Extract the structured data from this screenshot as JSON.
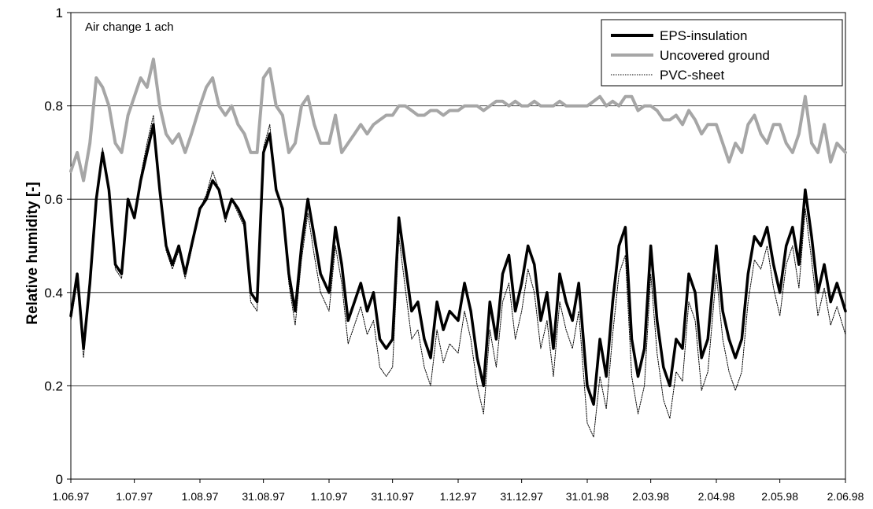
{
  "chart_data": {
    "type": "line",
    "title": "",
    "annotation": "Air change 1 ach",
    "xlabel": "",
    "ylabel": "Relative humidity  [-]",
    "ylim": [
      0,
      1
    ],
    "y_ticks": [
      "0",
      "0.2",
      "0.4",
      "0.6",
      "0.8",
      "1"
    ],
    "x_ticks": [
      "1.06.97",
      "1.07.97",
      "1.08.97",
      "31.08.97",
      "1.10.97",
      "31.10.97",
      "1.12.97",
      "31.12.97",
      "31.01.98",
      "2.03.98",
      "2.04.98",
      "2.05.98",
      "2.06.98"
    ],
    "grid": "horizontal",
    "legend_position": "top-right",
    "legend": [
      "EPS-insulation",
      "Uncovered ground",
      "PVC-sheet"
    ],
    "series": [
      {
        "name": "EPS-insulation",
        "color": "#000000",
        "style": "thick solid",
        "x": [
          "1.06.97",
          "4.06.97",
          "7.06.97",
          "10.06.97",
          "13.06.97",
          "16.06.97",
          "19.06.97",
          "22.06.97",
          "25.06.97",
          "28.06.97",
          "1.07.97",
          "4.07.97",
          "7.07.97",
          "10.07.97",
          "13.07.97",
          "16.07.97",
          "19.07.97",
          "22.07.97",
          "25.07.97",
          "28.07.97",
          "1.08.97",
          "4.08.97",
          "7.08.97",
          "10.08.97",
          "13.08.97",
          "16.08.97",
          "19.08.97",
          "22.08.97",
          "25.08.97",
          "28.08.97",
          "31.08.97",
          "3.09.97",
          "6.09.97",
          "9.09.97",
          "12.09.97",
          "15.09.97",
          "18.09.97",
          "21.09.97",
          "24.09.97",
          "27.09.97",
          "1.10.97",
          "4.10.97",
          "7.10.97",
          "10.10.97",
          "13.10.97",
          "16.10.97",
          "19.10.97",
          "22.10.97",
          "25.10.97",
          "28.10.97",
          "31.10.97",
          "3.11.97",
          "6.11.97",
          "9.11.97",
          "12.11.97",
          "15.11.97",
          "18.11.97",
          "21.11.97",
          "24.11.97",
          "27.11.97",
          "1.12.97",
          "4.12.97",
          "7.12.97",
          "10.12.97",
          "13.12.97",
          "16.12.97",
          "19.12.97",
          "22.12.97",
          "25.12.97",
          "28.12.97",
          "31.12.97",
          "3.01.98",
          "6.01.98",
          "9.01.98",
          "12.01.98",
          "15.01.98",
          "18.01.98",
          "21.01.98",
          "24.01.98",
          "27.01.98",
          "31.01.98",
          "3.02.98",
          "6.02.98",
          "9.02.98",
          "12.02.98",
          "15.02.98",
          "18.02.98",
          "21.02.98",
          "24.02.98",
          "27.02.98",
          "2.03.98",
          "5.03.98",
          "8.03.98",
          "11.03.98",
          "14.03.98",
          "17.03.98",
          "20.03.98",
          "23.03.98",
          "26.03.98",
          "29.03.98",
          "2.04.98",
          "5.04.98",
          "8.04.98",
          "11.04.98",
          "14.04.98",
          "17.04.98",
          "20.04.98",
          "23.04.98",
          "26.04.98",
          "29.04.98",
          "2.05.98",
          "5.05.98",
          "8.05.98",
          "11.05.98",
          "14.05.98",
          "17.05.98",
          "20.05.98",
          "23.05.98",
          "26.05.98",
          "29.05.98",
          "2.06.98"
        ],
        "values": [
          0.35,
          0.44,
          0.28,
          0.42,
          0.6,
          0.7,
          0.62,
          0.46,
          0.44,
          0.6,
          0.56,
          0.64,
          0.7,
          0.76,
          0.62,
          0.5,
          0.46,
          0.5,
          0.44,
          0.5,
          0.58,
          0.6,
          0.64,
          0.62,
          0.56,
          0.6,
          0.58,
          0.55,
          0.4,
          0.38,
          0.7,
          0.74,
          0.62,
          0.58,
          0.44,
          0.36,
          0.5,
          0.6,
          0.52,
          0.44,
          0.4,
          0.54,
          0.46,
          0.34,
          0.38,
          0.42,
          0.36,
          0.4,
          0.3,
          0.28,
          0.3,
          0.56,
          0.46,
          0.36,
          0.38,
          0.3,
          0.26,
          0.38,
          0.32,
          0.36,
          0.34,
          0.42,
          0.36,
          0.26,
          0.2,
          0.38,
          0.3,
          0.44,
          0.48,
          0.36,
          0.42,
          0.5,
          0.46,
          0.34,
          0.4,
          0.28,
          0.44,
          0.38,
          0.34,
          0.42,
          0.2,
          0.16,
          0.3,
          0.22,
          0.38,
          0.5,
          0.54,
          0.3,
          0.22,
          0.28,
          0.5,
          0.34,
          0.24,
          0.2,
          0.3,
          0.28,
          0.44,
          0.4,
          0.26,
          0.3,
          0.5,
          0.36,
          0.3,
          0.26,
          0.3,
          0.44,
          0.52,
          0.5,
          0.54,
          0.46,
          0.4,
          0.5,
          0.54,
          0.46,
          0.62,
          0.52,
          0.4,
          0.46,
          0.38,
          0.42,
          0.36
        ]
      },
      {
        "name": "Uncovered ground",
        "color": "#a6a6a6",
        "style": "thick solid",
        "x": [
          "1.06.97",
          "4.06.97",
          "7.06.97",
          "10.06.97",
          "13.06.97",
          "16.06.97",
          "19.06.97",
          "22.06.97",
          "25.06.97",
          "28.06.97",
          "1.07.97",
          "4.07.97",
          "7.07.97",
          "10.07.97",
          "13.07.97",
          "16.07.97",
          "19.07.97",
          "22.07.97",
          "25.07.97",
          "28.07.97",
          "1.08.97",
          "4.08.97",
          "7.08.97",
          "10.08.97",
          "13.08.97",
          "16.08.97",
          "19.08.97",
          "22.08.97",
          "25.08.97",
          "28.08.97",
          "31.08.97",
          "3.09.97",
          "6.09.97",
          "9.09.97",
          "12.09.97",
          "15.09.97",
          "18.09.97",
          "21.09.97",
          "24.09.97",
          "27.09.97",
          "1.10.97",
          "4.10.97",
          "7.10.97",
          "10.10.97",
          "13.10.97",
          "16.10.97",
          "19.10.97",
          "22.10.97",
          "25.10.97",
          "28.10.97",
          "31.10.97",
          "3.11.97",
          "6.11.97",
          "9.11.97",
          "12.11.97",
          "15.11.97",
          "18.11.97",
          "21.11.97",
          "24.11.97",
          "27.11.97",
          "1.12.97",
          "4.12.97",
          "7.12.97",
          "10.12.97",
          "13.12.97",
          "16.12.97",
          "19.12.97",
          "22.12.97",
          "25.12.97",
          "28.12.97",
          "31.12.97",
          "3.01.98",
          "6.01.98",
          "9.01.98",
          "12.01.98",
          "15.01.98",
          "18.01.98",
          "21.01.98",
          "24.01.98",
          "27.01.98",
          "31.01.98",
          "3.02.98",
          "6.02.98",
          "9.02.98",
          "12.02.98",
          "15.02.98",
          "18.02.98",
          "21.02.98",
          "24.02.98",
          "27.02.98",
          "2.03.98",
          "5.03.98",
          "8.03.98",
          "11.03.98",
          "14.03.98",
          "17.03.98",
          "20.03.98",
          "23.03.98",
          "26.03.98",
          "29.03.98",
          "2.04.98",
          "5.04.98",
          "8.04.98",
          "11.04.98",
          "14.04.98",
          "17.04.98",
          "20.04.98",
          "23.04.98",
          "26.04.98",
          "29.04.98",
          "2.05.98",
          "5.05.98",
          "8.05.98",
          "11.05.98",
          "14.05.98",
          "17.05.98",
          "20.05.98",
          "23.05.98",
          "26.05.98",
          "29.05.98",
          "2.06.98"
        ],
        "values": [
          0.66,
          0.7,
          0.64,
          0.72,
          0.86,
          0.84,
          0.8,
          0.72,
          0.7,
          0.78,
          0.82,
          0.86,
          0.84,
          0.9,
          0.8,
          0.74,
          0.72,
          0.74,
          0.7,
          0.74,
          0.8,
          0.84,
          0.86,
          0.8,
          0.78,
          0.8,
          0.76,
          0.74,
          0.7,
          0.7,
          0.86,
          0.88,
          0.8,
          0.78,
          0.7,
          0.72,
          0.8,
          0.82,
          0.76,
          0.72,
          0.72,
          0.78,
          0.7,
          0.72,
          0.74,
          0.76,
          0.74,
          0.76,
          0.77,
          0.78,
          0.78,
          0.8,
          0.8,
          0.79,
          0.78,
          0.78,
          0.79,
          0.79,
          0.78,
          0.79,
          0.79,
          0.8,
          0.8,
          0.8,
          0.79,
          0.8,
          0.81,
          0.81,
          0.8,
          0.81,
          0.8,
          0.8,
          0.81,
          0.8,
          0.8,
          0.8,
          0.81,
          0.8,
          0.8,
          0.8,
          0.8,
          0.81,
          0.82,
          0.8,
          0.81,
          0.8,
          0.82,
          0.82,
          0.79,
          0.8,
          0.8,
          0.79,
          0.77,
          0.77,
          0.78,
          0.76,
          0.79,
          0.77,
          0.74,
          0.76,
          0.76,
          0.72,
          0.68,
          0.72,
          0.7,
          0.76,
          0.78,
          0.74,
          0.72,
          0.76,
          0.76,
          0.72,
          0.7,
          0.74,
          0.82,
          0.72,
          0.7,
          0.76,
          0.68,
          0.72,
          0.7
        ]
      },
      {
        "name": "PVC-sheet",
        "color": "#000000",
        "style": "thin dotted",
        "x": [
          "1.06.97",
          "4.06.97",
          "7.06.97",
          "10.06.97",
          "13.06.97",
          "16.06.97",
          "19.06.97",
          "22.06.97",
          "25.06.97",
          "28.06.97",
          "1.07.97",
          "4.07.97",
          "7.07.97",
          "10.07.97",
          "13.07.97",
          "16.07.97",
          "19.07.97",
          "22.07.97",
          "25.07.97",
          "28.07.97",
          "1.08.97",
          "4.08.97",
          "7.08.97",
          "10.08.97",
          "13.08.97",
          "16.08.97",
          "19.08.97",
          "22.08.97",
          "25.08.97",
          "28.08.97",
          "31.08.97",
          "3.09.97",
          "6.09.97",
          "9.09.97",
          "12.09.97",
          "15.09.97",
          "18.09.97",
          "21.09.97",
          "24.09.97",
          "27.09.97",
          "1.10.97",
          "4.10.97",
          "7.10.97",
          "10.10.97",
          "13.10.97",
          "16.10.97",
          "19.10.97",
          "22.10.97",
          "25.10.97",
          "28.10.97",
          "31.10.97",
          "3.11.97",
          "6.11.97",
          "9.11.97",
          "12.11.97",
          "15.11.97",
          "18.11.97",
          "21.11.97",
          "24.11.97",
          "27.11.97",
          "1.12.97",
          "4.12.97",
          "7.12.97",
          "10.12.97",
          "13.12.97",
          "16.12.97",
          "19.12.97",
          "22.12.97",
          "25.12.97",
          "28.12.97",
          "31.12.97",
          "3.01.98",
          "6.01.98",
          "9.01.98",
          "12.01.98",
          "15.01.98",
          "18.01.98",
          "21.01.98",
          "24.01.98",
          "27.01.98",
          "31.01.98",
          "3.02.98",
          "6.02.98",
          "9.02.98",
          "12.02.98",
          "15.02.98",
          "18.02.98",
          "21.02.98",
          "24.02.98",
          "27.02.98",
          "2.03.98",
          "5.03.98",
          "8.03.98",
          "11.03.98",
          "14.03.98",
          "17.03.98",
          "20.03.98",
          "23.03.98",
          "26.03.98",
          "29.03.98",
          "2.04.98",
          "5.04.98",
          "8.04.98",
          "11.04.98",
          "14.04.98",
          "17.04.98",
          "20.04.98",
          "23.04.98",
          "26.04.98",
          "29.04.98",
          "2.05.98",
          "5.05.98",
          "8.05.98",
          "11.05.98",
          "14.05.98",
          "17.05.98",
          "20.05.98",
          "23.05.98",
          "26.05.98",
          "29.05.98",
          "2.06.98"
        ],
        "values": [
          0.34,
          0.42,
          0.26,
          0.41,
          0.6,
          0.71,
          0.62,
          0.45,
          0.43,
          0.6,
          0.56,
          0.65,
          0.72,
          0.78,
          0.62,
          0.49,
          0.45,
          0.49,
          0.43,
          0.49,
          0.58,
          0.61,
          0.66,
          0.62,
          0.55,
          0.6,
          0.57,
          0.54,
          0.38,
          0.36,
          0.71,
          0.76,
          0.62,
          0.57,
          0.42,
          0.33,
          0.47,
          0.57,
          0.48,
          0.4,
          0.36,
          0.5,
          0.42,
          0.29,
          0.33,
          0.37,
          0.31,
          0.34,
          0.24,
          0.22,
          0.24,
          0.52,
          0.41,
          0.3,
          0.32,
          0.24,
          0.2,
          0.32,
          0.25,
          0.29,
          0.27,
          0.36,
          0.3,
          0.2,
          0.14,
          0.32,
          0.24,
          0.38,
          0.42,
          0.3,
          0.36,
          0.45,
          0.4,
          0.28,
          0.34,
          0.22,
          0.38,
          0.32,
          0.28,
          0.36,
          0.12,
          0.09,
          0.22,
          0.15,
          0.31,
          0.44,
          0.48,
          0.22,
          0.14,
          0.2,
          0.44,
          0.27,
          0.17,
          0.13,
          0.23,
          0.21,
          0.38,
          0.34,
          0.19,
          0.23,
          0.44,
          0.3,
          0.23,
          0.19,
          0.23,
          0.38,
          0.47,
          0.45,
          0.5,
          0.41,
          0.35,
          0.46,
          0.5,
          0.41,
          0.58,
          0.47,
          0.35,
          0.41,
          0.33,
          0.37,
          0.31
        ]
      }
    ]
  }
}
